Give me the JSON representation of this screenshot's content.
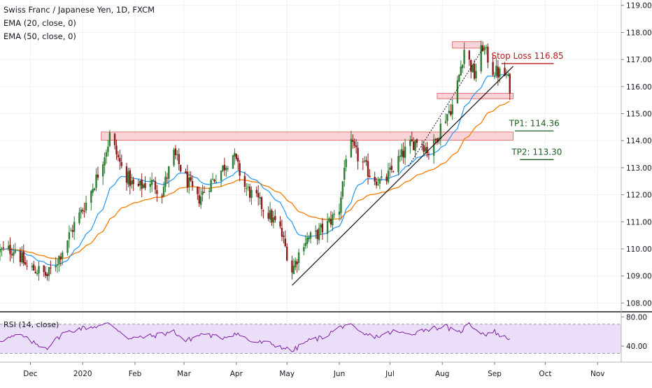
{
  "legend": {
    "title": "Swiss Franc / Japanese Yen, 1D, FXCM",
    "ema20": "EMA (20, close, 0)",
    "ema50": "EMA (50, close, 0)",
    "rsi": "RSI (14, close)"
  },
  "colors": {
    "up": "#26a69a",
    "down": "#ef5350",
    "body_up": "#2e7d32",
    "body_down": "#8b1a1a",
    "ema20": "#2196f3",
    "ema50": "#f57c00",
    "rsi": "#7b1fa2",
    "rsi_band": "#e8d8f7",
    "zone": "#f5c2c7",
    "stop": "#b71c1c",
    "tp": "#1b5e20"
  },
  "annotations": {
    "stop_loss": "Stop Loss 116.85",
    "tp1": "TP1: 114.36",
    "tp2": "TP2: 113.30"
  },
  "chart_data": [
    {
      "type": "candlestick",
      "title": "Swiss Franc / Japanese Yen, 1D, FXCM",
      "x_ticks": [
        "Dec",
        "2020",
        "Feb",
        "Mar",
        "Apr",
        "May",
        "Jun",
        "Jul",
        "Aug",
        "Sep",
        "Oct",
        "Nov"
      ],
      "y_ticks": [
        "108.000",
        "109.000",
        "110.000",
        "111.000",
        "112.000",
        "113.000",
        "114.000",
        "115.000",
        "116.000",
        "117.000",
        "118.000",
        "119.000"
      ],
      "ylim": [
        107.7,
        119.2
      ],
      "x_range": [
        "2019-11-13",
        "2020-11-15"
      ],
      "anchor_closes": [
        [
          "2019-11-13",
          109.9
        ],
        [
          "2019-11-22",
          110.0
        ],
        [
          "2019-11-29",
          109.3
        ],
        [
          "2019-12-06",
          109.2
        ],
        [
          "2019-12-11",
          109.0
        ],
        [
          "2019-12-18",
          109.7
        ],
        [
          "2019-12-27",
          110.9
        ],
        [
          "2020-01-03",
          111.7
        ],
        [
          "2020-01-09",
          112.6
        ],
        [
          "2020-01-16",
          113.9
        ],
        [
          "2020-01-17",
          114.2
        ],
        [
          "2020-01-24",
          113.0
        ],
        [
          "2020-02-01",
          112.2
        ],
        [
          "2020-02-10",
          112.5
        ],
        [
          "2020-02-17",
          112.1
        ],
        [
          "2020-02-24",
          113.5
        ],
        [
          "2020-03-02",
          112.6
        ],
        [
          "2020-03-09",
          111.8
        ],
        [
          "2020-03-16",
          112.4
        ],
        [
          "2020-03-23",
          112.9
        ],
        [
          "2020-03-30",
          113.5
        ],
        [
          "2020-04-06",
          112.3
        ],
        [
          "2020-04-13",
          111.8
        ],
        [
          "2020-04-20",
          111.3
        ],
        [
          "2020-04-27",
          110.7
        ],
        [
          "2020-05-04",
          109.2
        ],
        [
          "2020-05-11",
          110.3
        ],
        [
          "2020-05-18",
          110.5
        ],
        [
          "2020-05-25",
          110.9
        ],
        [
          "2020-06-01",
          111.5
        ],
        [
          "2020-06-06",
          114.0
        ],
        [
          "2020-06-13",
          113.3
        ],
        [
          "2020-06-20",
          112.7
        ],
        [
          "2020-06-27",
          112.4
        ],
        [
          "2020-07-04",
          113.1
        ],
        [
          "2020-07-11",
          113.7
        ],
        [
          "2020-07-18",
          114.1
        ],
        [
          "2020-07-25",
          113.5
        ],
        [
          "2020-08-01",
          114.7
        ],
        [
          "2020-08-07",
          115.3
        ],
        [
          "2020-08-10",
          116.1
        ],
        [
          "2020-08-14",
          117.4
        ],
        [
          "2020-08-20",
          116.4
        ],
        [
          "2020-08-25",
          117.5
        ],
        [
          "2020-08-31",
          116.6
        ],
        [
          "2020-09-03",
          116.5
        ],
        [
          "2020-09-08",
          116.4
        ],
        [
          "2020-09-10",
          116.0
        ]
      ],
      "zones": [
        {
          "from": "2020-01-12",
          "to": "2020-09-12",
          "low": 114.02,
          "high": 114.32
        },
        {
          "from": "2020-07-29",
          "to": "2020-09-12",
          "low": 115.55,
          "high": 115.75
        },
        {
          "from": "2020-08-07",
          "to": "2020-08-24",
          "low": 117.42,
          "high": 117.66
        }
      ],
      "trendlines": [
        {
          "from": [
            "2020-05-04",
            108.65
          ],
          "to": [
            "2020-09-12",
            116.75
          ],
          "style": "solid"
        },
        {
          "from": [
            "2020-07-12",
            113.05
          ],
          "to": [
            "2020-08-25",
            117.4
          ],
          "style": "dotted"
        }
      ],
      "levels": [
        {
          "label": "Stop Loss 116.85",
          "price": 116.85,
          "from": "2020-09-05",
          "to": "2020-10-06"
        },
        {
          "label": "TP1: 114.36",
          "price": 114.36,
          "from": "2020-09-13",
          "to": "2020-10-06"
        },
        {
          "label": "TP2: 113.30",
          "price": 113.3,
          "from": "2020-09-16",
          "to": "2020-10-06"
        }
      ]
    },
    {
      "type": "line",
      "title": "RSI (14, close)",
      "y_ticks": [
        "40.00",
        "80.00"
      ],
      "ylim": [
        18,
        86
      ],
      "band": [
        30,
        70
      ],
      "series": [
        {
          "name": "RSI (14, close)",
          "values": [
            [
              "2019-11-13",
              48
            ],
            [
              "2019-11-25",
              55
            ],
            [
              "2019-12-04",
              43
            ],
            [
              "2019-12-11",
              38
            ],
            [
              "2019-12-20",
              57
            ],
            [
              "2019-12-30",
              64
            ],
            [
              "2020-01-09",
              67
            ],
            [
              "2020-01-17",
              71
            ],
            [
              "2020-01-29",
              50
            ],
            [
              "2020-02-12",
              54
            ],
            [
              "2020-02-24",
              60
            ],
            [
              "2020-03-02",
              47
            ],
            [
              "2020-03-12",
              57
            ],
            [
              "2020-03-23",
              51
            ],
            [
              "2020-04-01",
              58
            ],
            [
              "2020-04-10",
              46
            ],
            [
              "2020-04-20",
              44
            ],
            [
              "2020-04-29",
              38
            ],
            [
              "2020-05-04",
              33
            ],
            [
              "2020-05-13",
              47
            ],
            [
              "2020-05-22",
              52
            ],
            [
              "2020-06-01",
              65
            ],
            [
              "2020-06-06",
              71
            ],
            [
              "2020-06-14",
              56
            ],
            [
              "2020-06-24",
              53
            ],
            [
              "2020-07-03",
              60
            ],
            [
              "2020-07-12",
              56
            ],
            [
              "2020-07-22",
              63
            ],
            [
              "2020-08-03",
              67
            ],
            [
              "2020-08-10",
              57
            ],
            [
              "2020-08-17",
              70
            ],
            [
              "2020-08-26",
              56
            ],
            [
              "2020-09-01",
              60
            ],
            [
              "2020-09-05",
              53
            ],
            [
              "2020-09-10",
              50
            ]
          ]
        }
      ]
    }
  ]
}
